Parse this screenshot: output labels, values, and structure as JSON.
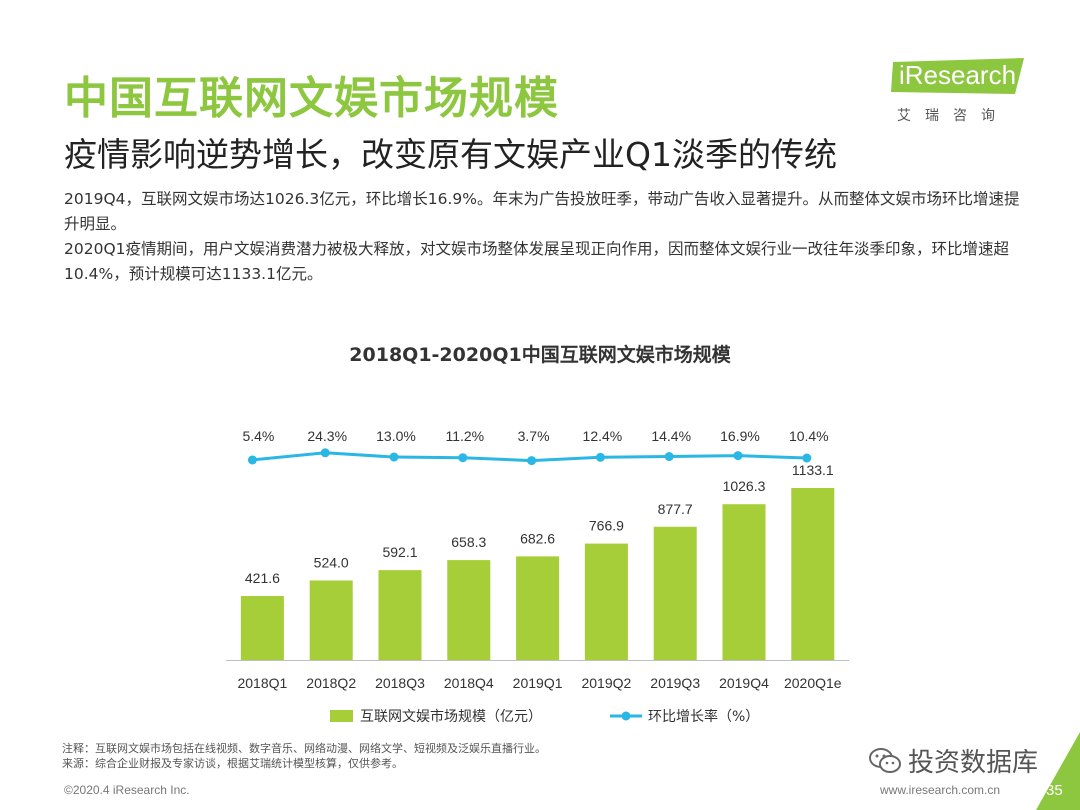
{
  "header": {
    "title": "中国互联网文娱市场规模",
    "subtitle": "疫情影响逆势增长，改变原有文娱产业Q1淡季的传统",
    "paragraph1": "2019Q4，互联网文娱市场达1026.3亿元，环比增长16.9%。年末为广告投放旺季，带动广告收入显著提升。从而整体文娱市场环比增速提升明显。",
    "paragraph2": "2020Q1疫情期间，用户文娱消费潜力被极大释放，对文娱市场整体发展呈现正向作用，因而整体文娱行业一改往年淡季印象，环比增速超10.4%，预计规模可达1133.1亿元。"
  },
  "logo": {
    "name": "iResearch",
    "sub": "艾瑞咨询",
    "color": "#8dc63f"
  },
  "chart_data": {
    "type": "bar",
    "title": "2018Q1-2020Q1中国互联网文娱市场规模",
    "categories": [
      "2018Q1",
      "2018Q2",
      "2018Q3",
      "2018Q4",
      "2019Q1",
      "2019Q2",
      "2019Q3",
      "2019Q4",
      "2020Q1e"
    ],
    "series": [
      {
        "name": "互联网文娱市场规模（亿元）",
        "kind": "bar",
        "color": "#a6ce39",
        "values": [
          421.6,
          524.0,
          592.1,
          658.3,
          682.6,
          766.9,
          877.7,
          1026.3,
          1133.1
        ],
        "labels": [
          "421.6",
          "524.0",
          "592.1",
          "658.3",
          "682.6",
          "766.9",
          "877.7",
          "1026.3",
          "1133.1"
        ]
      },
      {
        "name": "环比增长率（%）",
        "kind": "line",
        "color": "#2ab7e6",
        "values": [
          5.4,
          24.3,
          13.0,
          11.2,
          3.7,
          12.4,
          14.4,
          16.9,
          10.4
        ],
        "labels": [
          "5.4%",
          "24.3%",
          "13.0%",
          "11.2%",
          "3.7%",
          "12.4%",
          "14.4%",
          "16.9%",
          "10.4%"
        ]
      }
    ],
    "legend": "bottom"
  },
  "notes": {
    "note": "注释：互联网文娱市场包括在线视频、数字音乐、网络动漫、网络文学、短视频及泛娱乐直播行业。",
    "source": "来源：综合企业财报及专家访谈，根据艾瑞统计模型核算，仅供参考。"
  },
  "footer": {
    "copyright": "©2020.4 iResearch Inc.",
    "website": "www.iresearch.com.cn",
    "watermark": "投资数据库",
    "page": "35"
  }
}
